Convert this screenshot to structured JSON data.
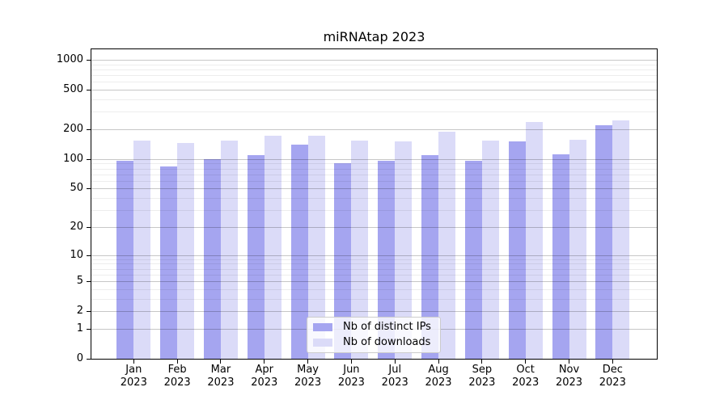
{
  "title": "miRNAtap 2023",
  "chart_data": {
    "type": "bar",
    "title": "miRNAtap 2023",
    "categories": [
      "Jan 2023",
      "Feb 2023",
      "Mar 2023",
      "Apr 2023",
      "May 2023",
      "Jun 2023",
      "Jul 2023",
      "Aug 2023",
      "Sep 2023",
      "Oct 2023",
      "Nov 2023",
      "Dec 2023"
    ],
    "series": [
      {
        "name": "Nb of distinct IPs",
        "color": "#a5a5f0",
        "values": [
          96,
          84,
          100,
          110,
          140,
          91,
          96,
          110,
          96,
          152,
          112,
          219
        ]
      },
      {
        "name": "Nb of downloads",
        "color": "#dbdbf8",
        "values": [
          153,
          144,
          153,
          171,
          173,
          155,
          151,
          189,
          153,
          236,
          158,
          246
        ]
      }
    ],
    "xlabel": "",
    "ylabel": "",
    "yscale": "log1p",
    "ylim": [
      0,
      1276
    ],
    "yticks": [
      0,
      1,
      2,
      5,
      10,
      20,
      50,
      100,
      200,
      500,
      1000
    ],
    "yticks_minor": [
      3,
      4,
      6,
      7,
      8,
      9,
      30,
      40,
      60,
      70,
      80,
      90,
      300,
      400,
      600,
      700,
      800,
      900
    ],
    "grid": true,
    "legend_position": "lower center"
  },
  "colors": {
    "grid_major": "#c7c7c7",
    "grid_minor": "#ededed",
    "spine": "#000000",
    "legend_border": "#cccccc"
  }
}
